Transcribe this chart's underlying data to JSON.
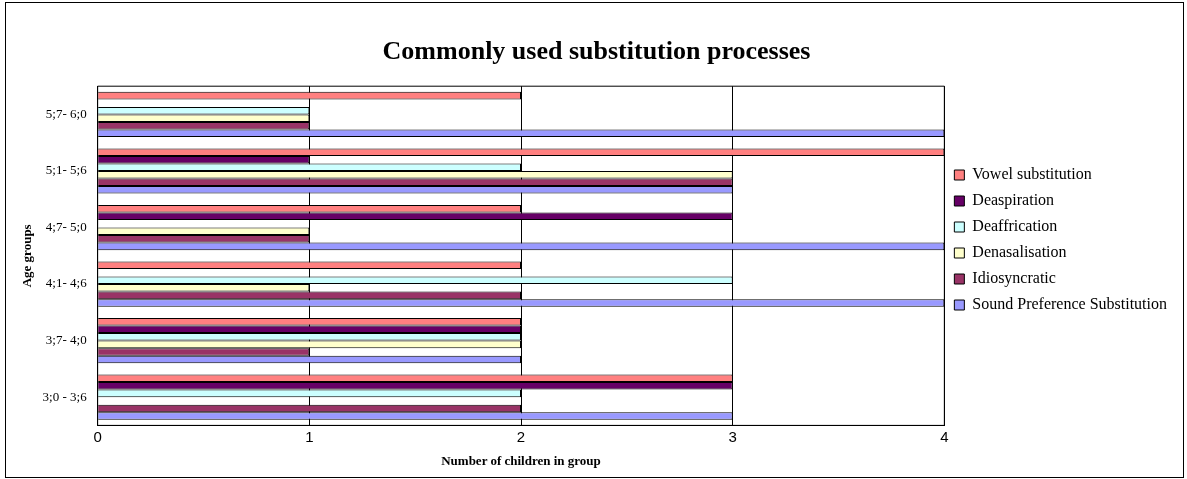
{
  "chart_data": {
    "type": "bar",
    "orientation": "horizontal",
    "title": "Commonly used substitution processes",
    "xlabel": "Number of children in group",
    "ylabel": "Age groups",
    "categories": [
      "5;7- 6;0",
      "5;1- 5;6",
      "4;7- 5;0",
      "4;1- 4;6",
      "3;7- 4;0",
      "3;0 - 3;6"
    ],
    "series": [
      {
        "name": "Vowel substitution",
        "color": "#ff8080",
        "values": [
          2,
          4,
          2,
          2,
          2,
          3
        ]
      },
      {
        "name": "Deaspiration",
        "color": "#660066",
        "values": [
          0,
          1,
          3,
          0,
          2,
          3
        ]
      },
      {
        "name": "Deaffrication",
        "color": "#ccffff",
        "values": [
          1,
          2,
          0,
          3,
          2,
          2
        ]
      },
      {
        "name": "Denasalisation",
        "color": "#ffffcc",
        "values": [
          1,
          3,
          1,
          1,
          2,
          0
        ]
      },
      {
        "name": "Idiosyncratic",
        "color": "#993366",
        "values": [
          1,
          3,
          1,
          2,
          1,
          2
        ]
      },
      {
        "name": "Sound Preference Substitution",
        "color": "#9999ff",
        "values": [
          4,
          3,
          4,
          4,
          2,
          3
        ]
      }
    ],
    "xlim": [
      0,
      4
    ],
    "xticks": [
      0,
      1,
      2,
      3,
      4
    ],
    "grid": "x",
    "legend": "right"
  }
}
